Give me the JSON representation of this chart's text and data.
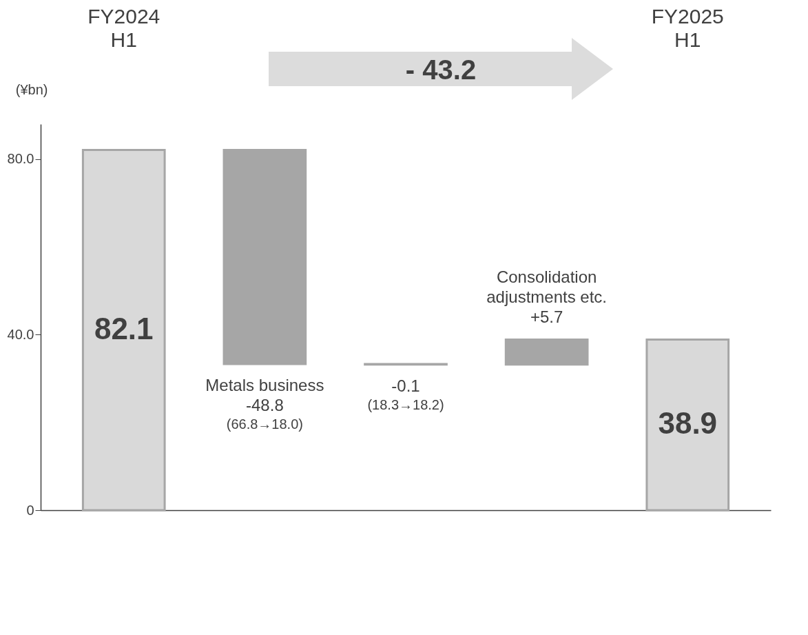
{
  "chart_data": {
    "type": "bar",
    "ylabel": "(¥bn)",
    "categories": [
      "FY2024 H1",
      "Metals business",
      null,
      "Consolidation adjustments etc.",
      "FY2025 H1"
    ],
    "values": [
      82.1,
      -48.8,
      -0.1,
      5.7,
      38.9
    ],
    "base": [
      0,
      82.1,
      33.3,
      33.2,
      0
    ],
    "colors": [
      "#d9d9d9",
      "#a6a6a6",
      "#a6a6a6",
      "#a6a6a6",
      "#d9d9d9"
    ],
    "value_labels": [
      "82.1",
      "-48.8",
      "-0.1",
      "+5.7",
      "38.9"
    ],
    "annotations": [
      "- 43.2",
      "(66.8→18.0)",
      "(18.3→18.2)"
    ],
    "ylim": [
      0,
      88
    ],
    "yticks": [
      0,
      {
        "value": 40,
        "label": "40.0"
      },
      {
        "value": 80,
        "label": "80.0"
      }
    ],
    "grid": false
  }
}
